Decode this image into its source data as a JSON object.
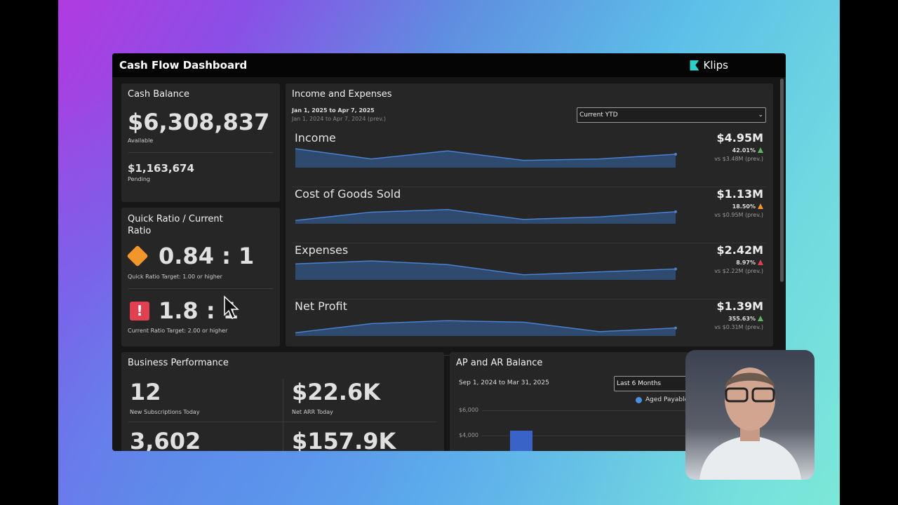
{
  "header": {
    "title": "Cash Flow Dashboard",
    "brand": "Klips"
  },
  "cash_balance": {
    "title": "Cash Balance",
    "available_value": "$6,308,837",
    "available_label": "Available",
    "pending_value": "$1,163,674",
    "pending_label": "Pending"
  },
  "ratio": {
    "title": "Quick Ratio / Current Ratio",
    "quick_value": "0.84 : 1",
    "quick_target": "Quick Ratio Target: 1.00 or higher",
    "quick_icon": "warning-diamond-icon",
    "quick_color": "#f0962a",
    "current_value": "1.8 : 1",
    "current_target": "Current Ratio Target: 2.00 or higher",
    "current_icon": "alert-exclamation-icon",
    "current_color": "#e0404f"
  },
  "income_expenses": {
    "title": "Income and Expenses",
    "date_range": "Jan 1, 2025 to Apr 7, 2025",
    "prev_range": "Jan 1, 2024 to Apr 7, 2024 (prev.)",
    "period_select": "Current YTD",
    "rows": [
      {
        "label": "Income",
        "value": "$4.95M",
        "change": "42.01%",
        "trend_color": "#5cb85c",
        "prev": "vs $3.48M (prev.)",
        "spark": [
          48,
          20,
          42,
          16,
          20,
          33
        ]
      },
      {
        "label": "Cost of Goods Sold",
        "value": "$1.13M",
        "change": "18.50%",
        "trend_color": "#f0962a",
        "prev": "vs $0.95M (prev.)",
        "spark": [
          5,
          28,
          35,
          8,
          15,
          29
        ]
      },
      {
        "label": "Expenses",
        "value": "$2.42M",
        "change": "8.97%",
        "trend_color": "#e0404f",
        "prev": "vs $2.22M (prev.)",
        "spark": [
          40,
          48,
          38,
          10,
          18,
          26
        ]
      },
      {
        "label": "Net Profit",
        "value": "$1.39M",
        "change": "355.63%",
        "trend_color": "#5cb85c",
        "prev": "vs $0.31M (prev.)",
        "spark": [
          5,
          30,
          38,
          34,
          8,
          18
        ]
      }
    ]
  },
  "business": {
    "title": "Business Performance",
    "metrics": [
      {
        "value": "12",
        "label": "New Subscriptions Today"
      },
      {
        "value": "$22.6K",
        "label": "Net ARR Today"
      },
      {
        "value": "3,602",
        "label": ""
      },
      {
        "value": "$157.9K",
        "label": ""
      }
    ]
  },
  "ap_ar": {
    "title": "AP and AR Balance",
    "date_range": "Sep 1, 2024 to Mar 31, 2025",
    "period_select": "Last 6 Months",
    "legend": "Aged Payables",
    "legend_color": "#4a90e2",
    "chart_data": {
      "type": "bar",
      "series": [
        {
          "name": "Aged Payables",
          "values": [
            4400
          ]
        }
      ],
      "yticks": [
        "$6,000",
        "$4,000"
      ]
    }
  },
  "colors": {
    "spark_line": "#4a80d0",
    "spark_fill": "#2e4a6e",
    "bar": "#3a63c8"
  }
}
